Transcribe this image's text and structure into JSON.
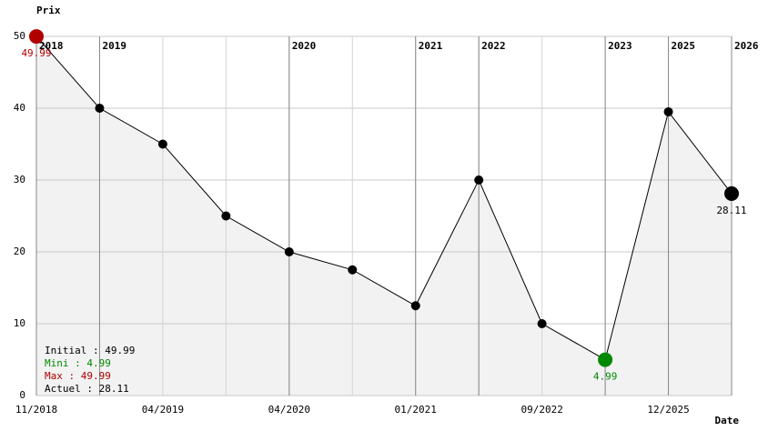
{
  "chart_data": {
    "type": "line",
    "y_label": "Prix",
    "x_label": "Date",
    "categories": [
      "11/2018",
      null,
      "04/2019",
      null,
      "04/2020",
      null,
      "01/2021",
      null,
      "09/2022",
      null,
      "12/2025",
      null
    ],
    "values": [
      49.99,
      40,
      35,
      25,
      20,
      17.5,
      12.5,
      30,
      10,
      4.99,
      39.5,
      28.11
    ],
    "color": "#000000",
    "fill": "#f2f2f2",
    "ylim": [
      0,
      50
    ],
    "yticks": [
      0,
      10,
      20,
      30,
      40,
      50
    ],
    "grid": true,
    "year_markers": [
      {
        "at": 0,
        "label": "2018"
      },
      {
        "at": 1,
        "label": "2019"
      },
      {
        "at": 4,
        "label": "2020"
      },
      {
        "at": 6,
        "label": "2021"
      },
      {
        "at": 7,
        "label": "2022"
      },
      {
        "at": 9,
        "label": "2023"
      },
      {
        "at": 10,
        "label": "2025"
      },
      {
        "at": 11,
        "label": "2026"
      }
    ],
    "highlights": [
      {
        "at": 0,
        "color": "#b00000"
      },
      {
        "at": 9,
        "color": "#008800"
      },
      {
        "at": 11,
        "color": "#000000"
      }
    ],
    "summary": [
      {
        "text": "Initial : 49.99",
        "color": "#000000"
      },
      {
        "text": "Mini : 4.99",
        "color": "#008800"
      },
      {
        "text": "Max : 49.99",
        "color": "#b00000"
      },
      {
        "text": "Actuel : 28.11",
        "color": "#000000"
      }
    ]
  }
}
